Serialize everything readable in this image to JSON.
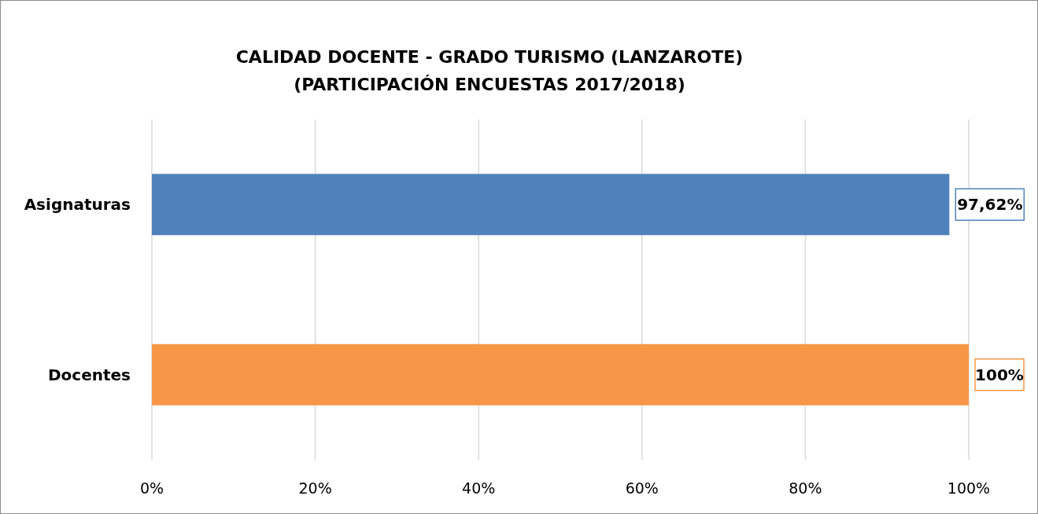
{
  "chart_data": {
    "type": "bar",
    "orientation": "horizontal",
    "title": "CALIDAD DOCENTE - GRADO TURISMO (LANZAROTE)\n(PARTICIPACIÓN ENCUESTAS 2017/2018)",
    "categories": [
      "Asignaturas",
      "Docentes"
    ],
    "values": [
      97.62,
      100
    ],
    "colors": [
      "#4f81bd",
      "#f79646"
    ],
    "value_labels": [
      "97,62%",
      "100%"
    ],
    "xlim": [
      0,
      100
    ],
    "xticks": [
      {
        "value": 0,
        "label": "0%"
      },
      {
        "value": 20,
        "label": "20%"
      },
      {
        "value": 40,
        "label": "40%"
      },
      {
        "value": 60,
        "label": "60%"
      },
      {
        "value": 80,
        "label": "80%"
      },
      {
        "value": 100,
        "label": "100%"
      }
    ],
    "grid": "x"
  }
}
